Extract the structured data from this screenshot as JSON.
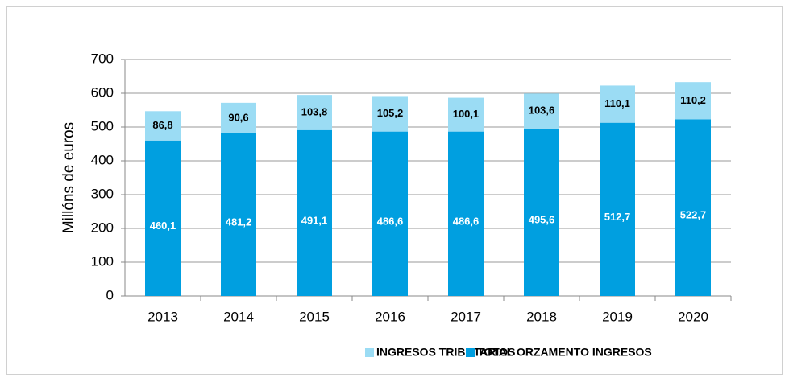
{
  "chart_data": {
    "type": "bar",
    "stacked": true,
    "y_label": "Millóns de euros",
    "categories": [
      "2013",
      "2014",
      "2015",
      "2016",
      "2017",
      "2018",
      "2019",
      "2020"
    ],
    "series": [
      {
        "name": "INGRESOS TRIBUTARIOS",
        "color": "#9bdcf4",
        "values": [
          86.8,
          90.6,
          103.8,
          105.2,
          100.1,
          103.6,
          110.1,
          110.2
        ],
        "value_labels": [
          "86,8",
          "90,6",
          "103,8",
          "105,2",
          "100,1",
          "103,6",
          "110,1",
          "110,2"
        ]
      },
      {
        "name": "TOTAL ORZAMENTO INGRESOS",
        "color": "#009fe0",
        "values": [
          460.1,
          481.2,
          491.1,
          486.6,
          486.6,
          495.6,
          512.7,
          522.7
        ],
        "value_labels": [
          "460,1",
          "481,2",
          "491,1",
          "486,6",
          "486,6",
          "495,6",
          "512,7",
          "522,7"
        ]
      }
    ],
    "ylim": [
      0,
      700
    ],
    "yticks": [
      0,
      100,
      200,
      300,
      400,
      500,
      600,
      700
    ],
    "grid": true,
    "legend": "bottom"
  }
}
